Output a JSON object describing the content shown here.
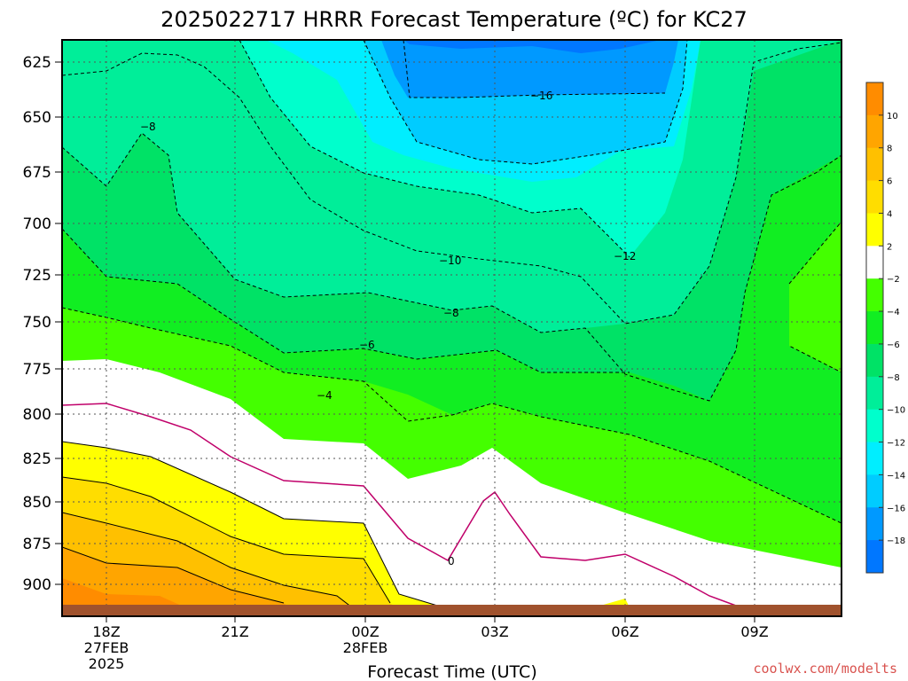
{
  "chart_data": {
    "type": "contour",
    "title": "2025022717 HRRR Forecast Temperature (ºC) for KC27",
    "xlabel": "Forecast Time (UTC)",
    "ylabel": "",
    "credit": "coolwx.com/modelts",
    "y_ticks": [
      "625",
      "650",
      "675",
      "700",
      "725",
      "750",
      "775",
      "800",
      "825",
      "850",
      "875",
      "900"
    ],
    "x_ticks": [
      {
        "line1": "18Z",
        "line2": "27FEB",
        "line3": "2025"
      },
      {
        "line1": "21Z",
        "line2": "",
        "line3": ""
      },
      {
        "line1": "00Z",
        "line2": "28FEB",
        "line3": ""
      },
      {
        "line1": "03Z",
        "line2": "",
        "line3": ""
      },
      {
        "line1": "06Z",
        "line2": "",
        "line3": ""
      },
      {
        "line1": "09Z",
        "line2": "",
        "line3": ""
      }
    ],
    "colorbar": {
      "labels": [
        "10",
        "8",
        "6",
        "4",
        "2",
        "−2",
        "−4",
        "−6",
        "−8",
        "−10",
        "−12",
        "−14",
        "−16",
        "−18"
      ],
      "colors": [
        "#ff8c00",
        "#ffa500",
        "#ffc000",
        "#ffdd00",
        "#ffff00",
        "#ffffff",
        "#44ff00",
        "#11ee22",
        "#00e266",
        "#00ee99",
        "#00ffcc",
        "#00eeff",
        "#00ccff",
        "#0099ff",
        "#0077ff"
      ]
    },
    "contour_labels": [
      "−8",
      "−16",
      "−10",
      "−12",
      "−8",
      "−6",
      "−4",
      "0"
    ]
  }
}
